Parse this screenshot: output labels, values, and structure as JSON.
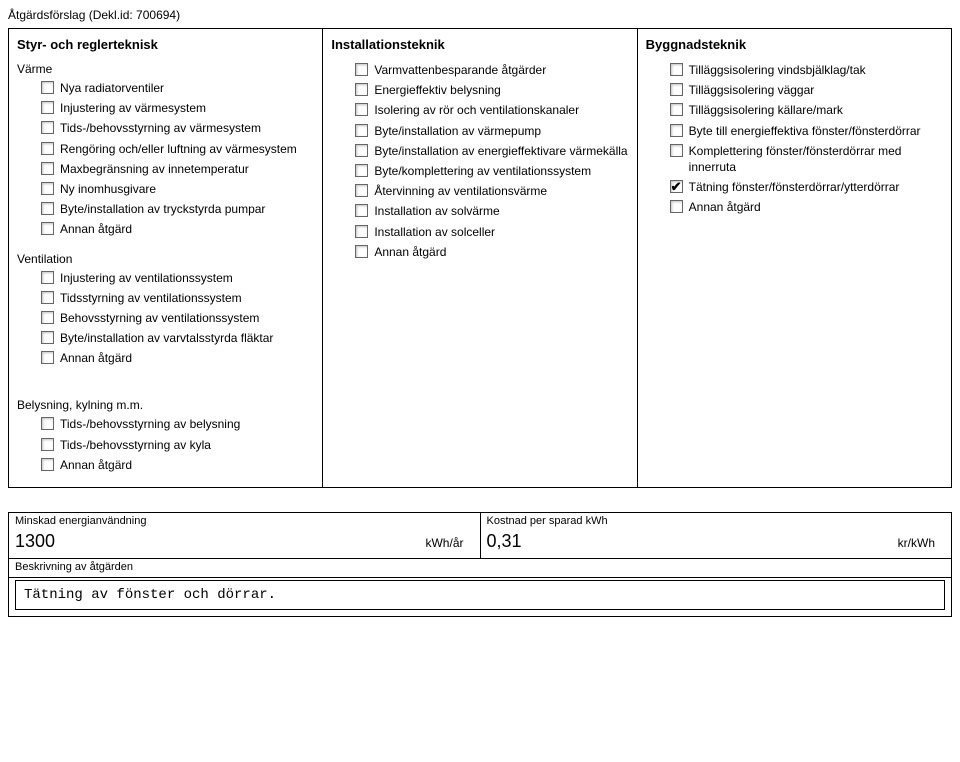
{
  "header": "Åtgärdsförslag (Dekl.id: 700694)",
  "col1": {
    "heading": "Styr- och reglerteknisk",
    "group1_label": "Värme",
    "group1": [
      {
        "label": "Nya radiatorventiler",
        "checked": false
      },
      {
        "label": "Injustering av värmesystem",
        "checked": false
      },
      {
        "label": "Tids-/behovsstyrning av värmesystem",
        "checked": false
      },
      {
        "label": "Rengöring och/eller luftning av värmesystem",
        "checked": false
      },
      {
        "label": "Maxbegränsning av innetemperatur",
        "checked": false
      },
      {
        "label": "Ny inomhusgivare",
        "checked": false
      },
      {
        "label": "Byte/installation av tryckstyrda pumpar",
        "checked": false
      },
      {
        "label": "Annan åtgärd",
        "checked": false
      }
    ],
    "group2_label": "Ventilation",
    "group2": [
      {
        "label": "Injustering av ventilationssystem",
        "checked": false
      },
      {
        "label": "Tidsstyrning av ventilationssystem",
        "checked": false
      },
      {
        "label": "Behovsstyrning av ventilationssystem",
        "checked": false
      },
      {
        "label": "Byte/installation av varvtalsstyrda fläktar",
        "checked": false
      },
      {
        "label": "Annan åtgärd",
        "checked": false
      }
    ],
    "group3_label": "Belysning, kylning m.m.",
    "group3": [
      {
        "label": "Tids-/behovsstyrning av belysning",
        "checked": false
      },
      {
        "label": "Tids-/behovsstyrning av kyla",
        "checked": false
      },
      {
        "label": "Annan åtgärd",
        "checked": false
      }
    ]
  },
  "col2": {
    "heading": "Installationsteknik",
    "items": [
      {
        "label": "Varmvattenbesparande åtgärder",
        "checked": false
      },
      {
        "label": "Energieffektiv belysning",
        "checked": false
      },
      {
        "label": "Isolering av rör och ventilationskanaler",
        "checked": false
      },
      {
        "label": "Byte/installation av värmepump",
        "checked": false
      },
      {
        "label": "Byte/installation av energieffektivare värmekälla",
        "checked": false
      },
      {
        "label": "Byte/komplettering av ventilationssystem",
        "checked": false
      },
      {
        "label": "Återvinning av ventilationsvärme",
        "checked": false
      },
      {
        "label": "Installation av solvärme",
        "checked": false
      },
      {
        "label": "Installation av solceller",
        "checked": false
      },
      {
        "label": "Annan åtgärd",
        "checked": false
      }
    ]
  },
  "col3": {
    "heading": "Byggnadsteknik",
    "items": [
      {
        "label": "Tilläggsisolering vindsbjälklag/tak",
        "checked": false
      },
      {
        "label": "Tilläggsisolering väggar",
        "checked": false
      },
      {
        "label": "Tilläggsisolering källare/mark",
        "checked": false
      },
      {
        "label": "Byte till energieffektiva fönster/fönsterdörrar",
        "checked": false
      },
      {
        "label": "Komplettering fönster/fönsterdörrar med innerruta",
        "checked": false
      },
      {
        "label": "Tätning fönster/fönsterdörrar/ytterdörrar",
        "checked": true
      },
      {
        "label": "Annan åtgärd",
        "checked": false
      }
    ]
  },
  "bottom": {
    "energy_label": "Minskad energianvändning",
    "energy_value": "1300",
    "energy_unit": "kWh/år",
    "cost_label": "Kostnad per sparad kWh",
    "cost_value": "0,31",
    "cost_unit": "kr/kWh",
    "desc_label": "Beskrivning av åtgärden",
    "desc_value": "Tätning av fönster och dörrar."
  }
}
